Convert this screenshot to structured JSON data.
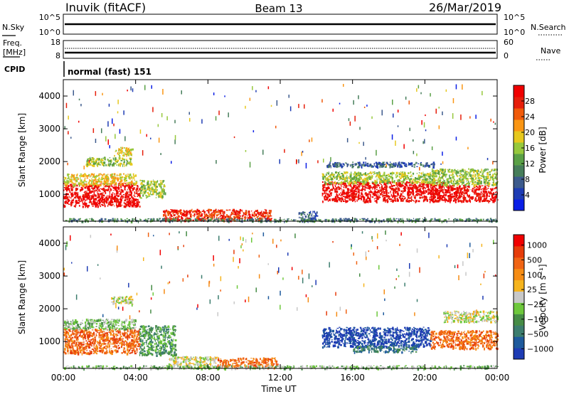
{
  "header": {
    "station": "Inuvik (fitACF)",
    "beam": "Beam 13",
    "date": "26/Mar/2019"
  },
  "sky_panel": {
    "left_label": "N.Sky",
    "right_label": "N.Search",
    "left_ticks": [
      "10^5",
      "10^0"
    ],
    "right_ticks": [
      "10^5",
      "10^0"
    ]
  },
  "freq_panel": {
    "left_label_line1": "Freq.",
    "left_label_line2": "[MHz]",
    "right_label": "Nave",
    "left_ticks": [
      "18",
      "8"
    ],
    "right_ticks": [
      "60",
      "0"
    ]
  },
  "cpid": {
    "label": "CPID",
    "mode": "normal (fast) 151"
  },
  "chart_data": [
    {
      "type": "heatmap",
      "ylabel": "Slant Range [km]",
      "x_ticks": [
        "00:00",
        "04:00",
        "08:00",
        "12:00",
        "16:00",
        "20:00",
        "00:00"
      ],
      "y_ticks": [
        "1000",
        "2000",
        "3000",
        "4000"
      ],
      "ylim": [
        180,
        4500
      ],
      "colorbar": {
        "label": "Power [dB]",
        "ticks": [
          "4",
          "8",
          "12",
          "16",
          "20",
          "24",
          "28"
        ],
        "colors": [
          "#0a1ee6",
          "#1e3cb4",
          "#3c5a8c",
          "#467d5a",
          "#5aa046",
          "#96c83c",
          "#e6c81e",
          "#fa9614",
          "#f05a0a",
          "#e61e0a",
          "#f00000"
        ]
      },
      "regions": [
        {
          "t0": 0.0,
          "t1": 4.2,
          "r0": 650,
          "r1": 1350,
          "level": 10
        },
        {
          "t0": 0.0,
          "t1": 4.0,
          "r0": 1300,
          "r1": 1650,
          "level": 6
        },
        {
          "t0": 1.2,
          "t1": 3.8,
          "r0": 1900,
          "r1": 2150,
          "level": 5
        },
        {
          "t0": 2.8,
          "t1": 3.8,
          "r0": 2200,
          "r1": 2450,
          "level": 6
        },
        {
          "t0": 4.2,
          "t1": 5.6,
          "r0": 900,
          "r1": 1450,
          "level": 5
        },
        {
          "t0": 5.5,
          "t1": 11.5,
          "r0": 220,
          "r1": 560,
          "level": 9
        },
        {
          "t0": 13.0,
          "t1": 14.0,
          "r0": 200,
          "r1": 500,
          "level": 2
        },
        {
          "t0": 14.3,
          "t1": 21.0,
          "r0": 800,
          "r1": 1400,
          "level": 10
        },
        {
          "t0": 14.3,
          "t1": 20.5,
          "r0": 1350,
          "r1": 1700,
          "level": 5
        },
        {
          "t0": 20.3,
          "t1": 24.0,
          "r0": 800,
          "r1": 1300,
          "level": 10
        },
        {
          "t0": 20.3,
          "t1": 24.0,
          "r0": 1300,
          "r1": 1800,
          "level": 5
        },
        {
          "t0": 14.5,
          "t1": 20.5,
          "r0": 1850,
          "r1": 2000,
          "level": 2
        },
        {
          "t0": 0.0,
          "t1": 24.0,
          "r0": 190,
          "r1": 280,
          "level": 3
        }
      ]
    },
    {
      "type": "heatmap",
      "ylabel": "Slant Range [km]",
      "xlabel": "Time UT",
      "x_ticks": [
        "00:00",
        "04:00",
        "08:00",
        "12:00",
        "16:00",
        "20:00",
        "00:00"
      ],
      "y_ticks": [
        "1000",
        "2000",
        "3000",
        "4000"
      ],
      "ylim": [
        180,
        4500
      ],
      "colorbar": {
        "label": "Velocity [m s⁻¹]",
        "ticks": [
          "1000",
          "500",
          "100",
          "25",
          "−25",
          "−100",
          "−500",
          "−1000"
        ],
        "colors": [
          "#1e3cb4",
          "#1e5a9c",
          "#3c7d6e",
          "#468c46",
          "#6ec83c",
          "#c8c8c8",
          "#f5b41e",
          "#f58c14",
          "#f06414",
          "#e63c0a",
          "#f00000"
        ]
      },
      "regions": [
        {
          "t0": 0.0,
          "t1": 4.2,
          "r0": 650,
          "r1": 1400,
          "level": 8
        },
        {
          "t0": 0.0,
          "t1": 4.0,
          "r0": 1400,
          "r1": 1700,
          "level": 4
        },
        {
          "t0": 2.6,
          "t1": 3.8,
          "r0": 2150,
          "r1": 2400,
          "level": 5
        },
        {
          "t0": 4.2,
          "t1": 6.2,
          "r0": 600,
          "r1": 1500,
          "level": 3
        },
        {
          "t0": 5.8,
          "t1": 8.5,
          "r0": 260,
          "r1": 560,
          "level": 5
        },
        {
          "t0": 8.5,
          "t1": 11.8,
          "r0": 220,
          "r1": 520,
          "level": 8
        },
        {
          "t0": 14.3,
          "t1": 20.3,
          "r0": 850,
          "r1": 1450,
          "level": 0
        },
        {
          "t0": 16.0,
          "t1": 19.5,
          "r0": 700,
          "r1": 900,
          "level": 2
        },
        {
          "t0": 20.3,
          "t1": 24.0,
          "r0": 800,
          "r1": 1350,
          "level": 8
        },
        {
          "t0": 21.0,
          "t1": 24.0,
          "r0": 1600,
          "r1": 1950,
          "level": 5
        },
        {
          "t0": 0.0,
          "t1": 24.0,
          "r0": 190,
          "r1": 280,
          "level": 4
        }
      ]
    }
  ]
}
